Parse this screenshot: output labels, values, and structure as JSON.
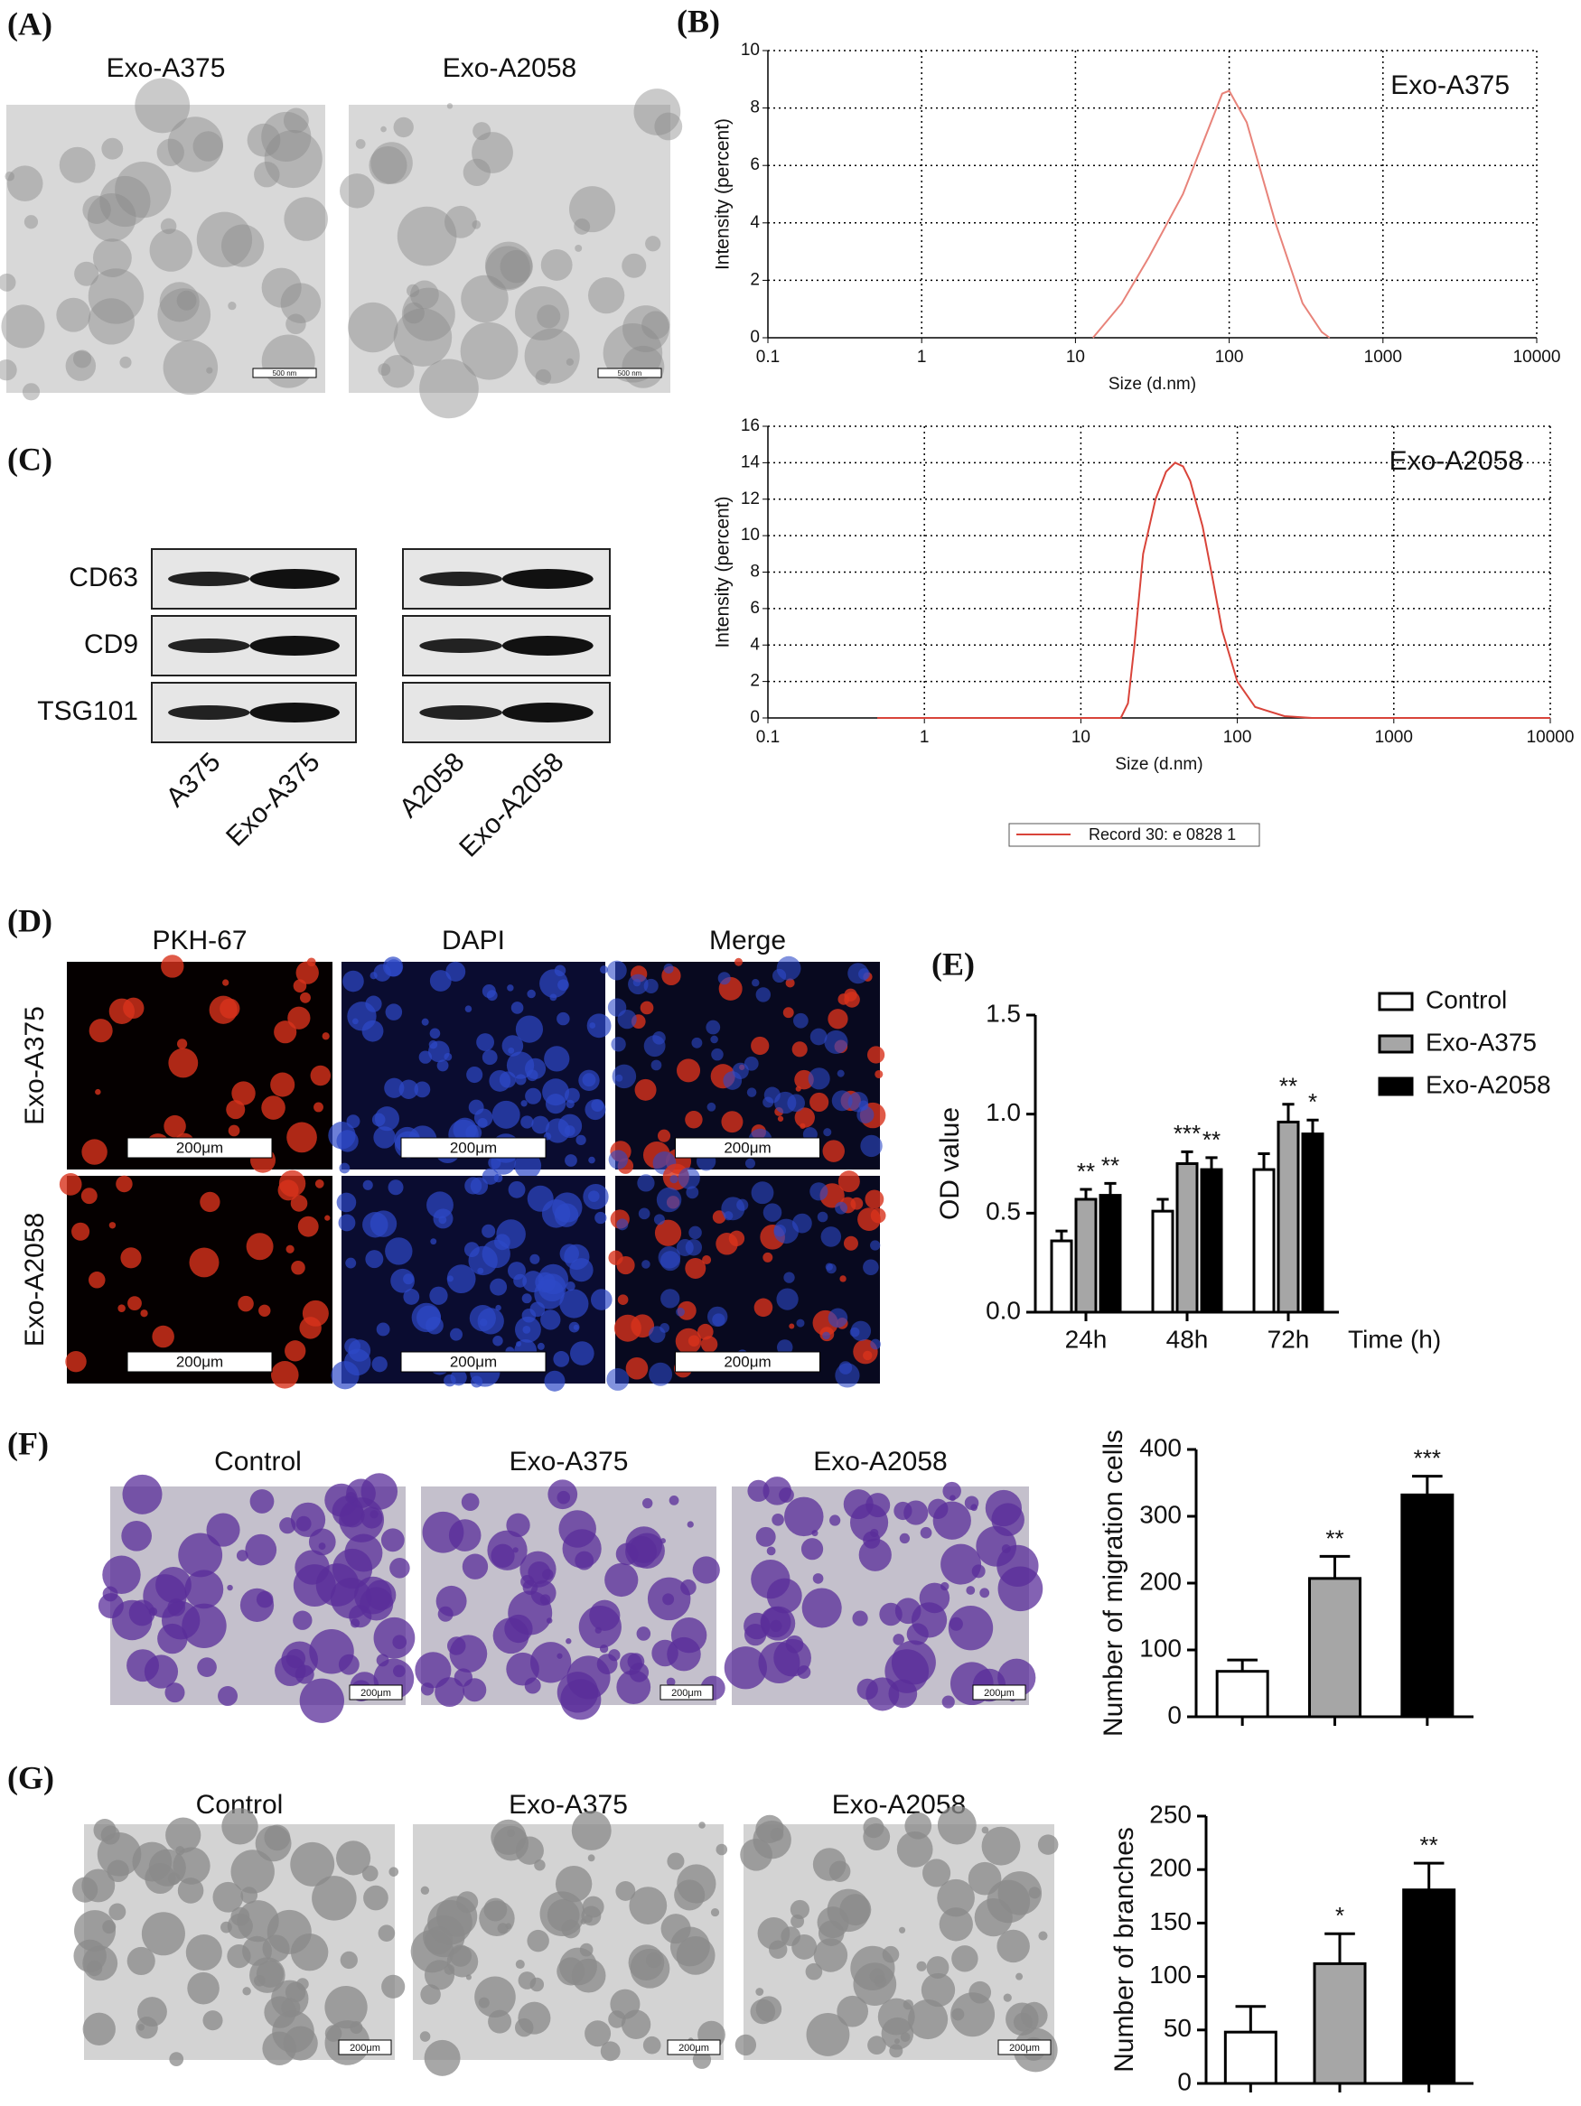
{
  "panels": {
    "A": {
      "label": "(A)",
      "titles": [
        "Exo-A375",
        "Exo-A2058"
      ],
      "scale_bar": "500 nm"
    },
    "B": {
      "label": "(B)"
    },
    "C": {
      "label": "(C)",
      "proteins": [
        "CD63",
        "CD9",
        "TSG101"
      ],
      "lanes": [
        "A375",
        "Exo-A375",
        "A2058",
        "Exo-A2058"
      ]
    },
    "D": {
      "label": "(D)",
      "columns": [
        "PKH-67",
        "DAPI",
        "Merge"
      ],
      "rows": [
        "Exo-A375",
        "Exo-A2058"
      ],
      "scale_bar": "200μm"
    },
    "E": {
      "label": "(E)"
    },
    "F": {
      "label": "(F)",
      "titles": [
        "Control",
        "Exo-A375",
        "Exo-A2058"
      ],
      "scale_bar": "200μm"
    },
    "G": {
      "label": "(G)",
      "titles": [
        "Control",
        "Exo-A375",
        "Exo-A2058"
      ],
      "scale_bar": "200μm"
    }
  },
  "chart_data": [
    {
      "type": "line",
      "log_x": true,
      "grid": true,
      "annotation": "Exo-A375",
      "x_label": "Size (d.nm)",
      "y_label": "Intensity (percent)",
      "xlim": [
        0.1,
        10000
      ],
      "xticks": [
        0.1,
        1,
        10,
        100,
        1000,
        10000
      ],
      "ylim": [
        0,
        10
      ],
      "yticks": [
        0,
        2,
        4,
        6,
        8,
        10
      ],
      "series": [
        {
          "color": "#e8837a",
          "x": [
            13,
            20,
            30,
            50,
            70,
            90,
            100,
            130,
            200,
            300,
            400,
            450
          ],
          "values": [
            0,
            1.2,
            2.8,
            5,
            7,
            8.5,
            8.6,
            7.5,
            4,
            1.2,
            0.2,
            0
          ]
        }
      ]
    },
    {
      "type": "line",
      "log_x": true,
      "grid": true,
      "annotation": "Exo-A2058",
      "legend": "below",
      "x_label": "Size (d.nm)",
      "y_label": "Intensity (percent)",
      "xlim": [
        0.1,
        10000
      ],
      "xticks": [
        0.1,
        1,
        10,
        100,
        1000,
        10000
      ],
      "ylim": [
        0,
        16
      ],
      "yticks": [
        0,
        2,
        4,
        6,
        8,
        10,
        12,
        14,
        16
      ],
      "series": [
        {
          "name": "Record 30: e 0828 1",
          "color": "#d9443a",
          "x": [
            0.5,
            18,
            20,
            22,
            25,
            30,
            35,
            40,
            45,
            50,
            60,
            70,
            80,
            100,
            130,
            200,
            300,
            10000
          ],
          "values": [
            0,
            0,
            0.8,
            4,
            9,
            12,
            13.5,
            14,
            13.8,
            13,
            10.5,
            7.5,
            4.8,
            2,
            0.6,
            0.1,
            0,
            0
          ]
        }
      ]
    },
    {
      "type": "grouped_bar",
      "x_label": "Time (h)",
      "y_label": "OD value",
      "categories": [
        "24h",
        "48h",
        "72h"
      ],
      "ylim": [
        0,
        1.5
      ],
      "yticks": [
        {
          "value": 0,
          "label": "0.0"
        },
        0.5,
        {
          "value": 1,
          "label": "1.0"
        },
        1.5
      ],
      "series": [
        {
          "name": "Control",
          "color": "#ffffff",
          "values": [
            0.36,
            0.51,
            0.72
          ],
          "errors": [
            0.05,
            0.06,
            0.08
          ]
        },
        {
          "name": "Exo-A375",
          "color": "#a6a6a6",
          "values": [
            0.57,
            0.75,
            0.96
          ],
          "errors": [
            0.05,
            0.06,
            0.09
          ],
          "annotations": [
            "**",
            "***",
            "**"
          ]
        },
        {
          "name": "Exo-A2058",
          "color": "#000000",
          "values": [
            0.59,
            0.72,
            0.9
          ],
          "errors": [
            0.06,
            0.06,
            0.07
          ],
          "annotations": [
            "**",
            "**",
            "*"
          ]
        }
      ]
    },
    {
      "type": "bar",
      "y_label": "Number of migration cells",
      "categories": [
        null,
        null,
        null
      ],
      "values": [
        68,
        207,
        332
      ],
      "errors": [
        17,
        33,
        28
      ],
      "colors": [
        "#ffffff",
        "#a6a6a6",
        "#000000"
      ],
      "annotations": [
        null,
        "**",
        "***"
      ],
      "ylim": [
        0,
        400
      ],
      "yticks": [
        0,
        100,
        200,
        300,
        400
      ]
    },
    {
      "type": "bar",
      "y_label": "Number of branches",
      "categories": [
        null,
        null,
        null
      ],
      "values": [
        48,
        112,
        181
      ],
      "errors": [
        24,
        28,
        25
      ],
      "colors": [
        "#ffffff",
        "#a6a6a6",
        "#000000"
      ],
      "annotations": [
        null,
        "*",
        "**"
      ],
      "ylim": [
        0,
        250
      ],
      "yticks": [
        0,
        50,
        100,
        150,
        200,
        250
      ]
    }
  ]
}
